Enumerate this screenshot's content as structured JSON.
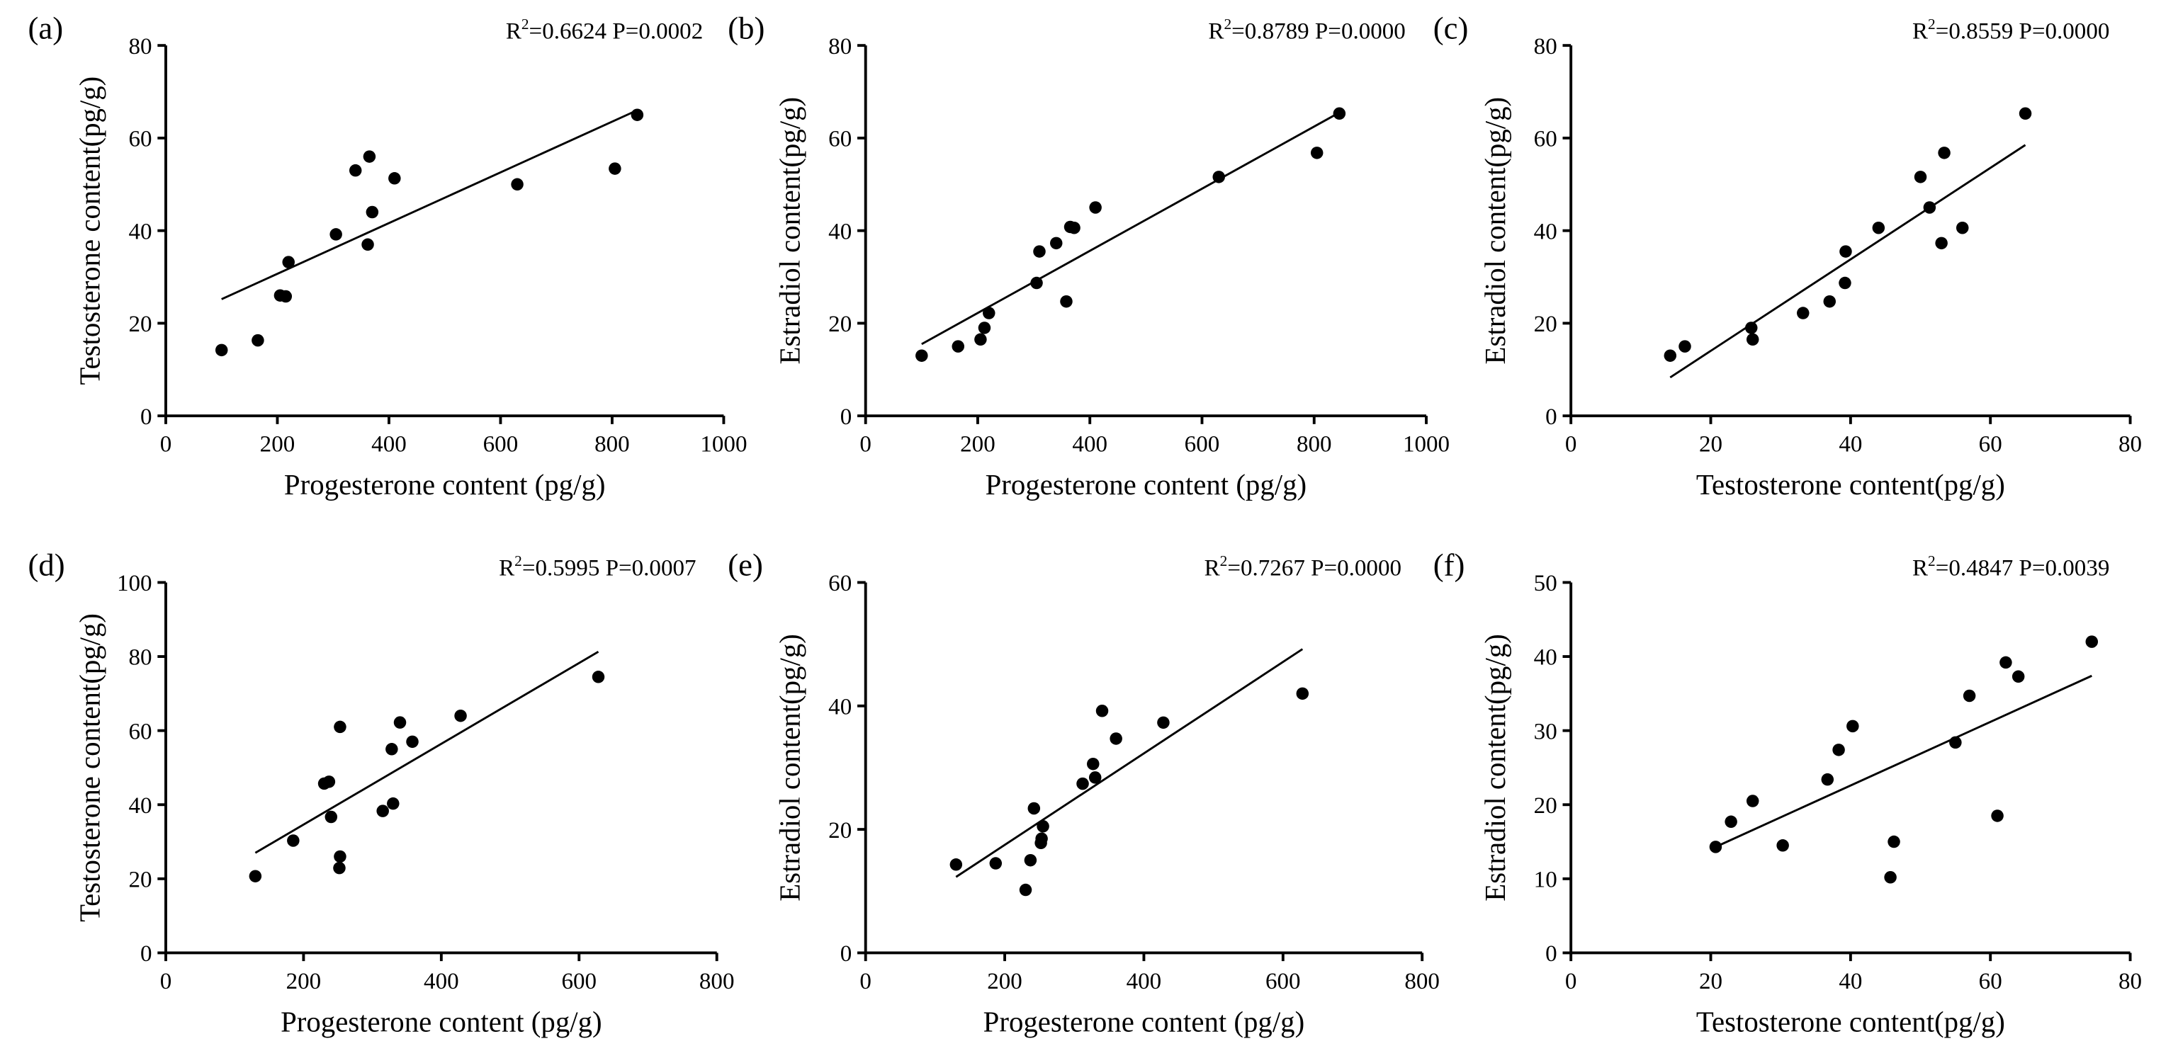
{
  "chart_data": [
    {
      "type": "scatter",
      "panel": "(a)",
      "annotation": {
        "r2": "0.6624",
        "p": "0.0002"
      },
      "xlabel": "Progesterone content (pg/g)",
      "ylabel": "Testosterone content(pg/g)",
      "xlim": [
        0,
        1000
      ],
      "ylim": [
        0,
        80
      ],
      "xticks": [
        0,
        200,
        400,
        600,
        800,
        1000
      ],
      "yticks": [
        0,
        20,
        40,
        60,
        80
      ],
      "points": [
        [
          100,
          14.2
        ],
        [
          165,
          16.3
        ],
        [
          205,
          26
        ],
        [
          215,
          25.8
        ],
        [
          220,
          33.2
        ],
        [
          305,
          39.2
        ],
        [
          340,
          53
        ],
        [
          365,
          56
        ],
        [
          362,
          37
        ],
        [
          370,
          44
        ],
        [
          410,
          51.3
        ],
        [
          630,
          50
        ],
        [
          805,
          53.4
        ],
        [
          845,
          65
        ]
      ],
      "fit": [
        [
          100,
          25.2
        ],
        [
          845,
          66
        ]
      ]
    },
    {
      "type": "scatter",
      "panel": "(b)",
      "annotation": {
        "r2": "0.8789",
        "p": "0.0000"
      },
      "xlabel": "Progesterone content (pg/g)",
      "ylabel": "Estradiol content(pg/g)",
      "xlim": [
        0,
        1000
      ],
      "ylim": [
        0,
        80
      ],
      "xticks": [
        0,
        200,
        400,
        600,
        800,
        1000
      ],
      "yticks": [
        0,
        20,
        40,
        60,
        80
      ],
      "points": [
        [
          100,
          13
        ],
        [
          165,
          15
        ],
        [
          205,
          16.5
        ],
        [
          212,
          19
        ],
        [
          220,
          22.2
        ],
        [
          305,
          28.7
        ],
        [
          310,
          35.5
        ],
        [
          340,
          37.3
        ],
        [
          358,
          24.7
        ],
        [
          365,
          40.8
        ],
        [
          372,
          40.6
        ],
        [
          410,
          45
        ],
        [
          630,
          51.6
        ],
        [
          805,
          56.8
        ],
        [
          845,
          65.3
        ]
      ],
      "fit": [
        [
          100,
          15.5
        ],
        [
          845,
          65.5
        ]
      ]
    },
    {
      "type": "scatter",
      "panel": "(c)",
      "annotation": {
        "r2": "0.8559",
        "p": "0.0000"
      },
      "xlabel": "Testosterone content(pg/g)",
      "ylabel": "Estradiol content(pg/g)",
      "xlim": [
        0,
        80
      ],
      "ylim": [
        0,
        80
      ],
      "xticks": [
        0,
        20,
        40,
        60,
        80
      ],
      "yticks": [
        0,
        20,
        40,
        60,
        80
      ],
      "points": [
        [
          14.2,
          13
        ],
        [
          16.3,
          15
        ],
        [
          26,
          16.5
        ],
        [
          25.8,
          19
        ],
        [
          33.2,
          22.2
        ],
        [
          37,
          24.7
        ],
        [
          39.2,
          28.7
        ],
        [
          39.3,
          35.5
        ],
        [
          44,
          40.6
        ],
        [
          50,
          51.6
        ],
        [
          51.3,
          45
        ],
        [
          53,
          37.3
        ],
        [
          53.4,
          56.8
        ],
        [
          56,
          40.6
        ],
        [
          65,
          65.3
        ]
      ],
      "fit": [
        [
          14.2,
          8.3
        ],
        [
          65,
          58.5
        ]
      ]
    },
    {
      "type": "scatter",
      "panel": "(d)",
      "annotation": {
        "r2": "0.5995",
        "p": "0.0007"
      },
      "xlabel": "Progesterone content (pg/g)",
      "ylabel": "Testosterone content(pg/g)",
      "xlim": [
        0,
        800
      ],
      "ylim": [
        0,
        100
      ],
      "xticks": [
        0,
        200,
        400,
        600,
        800
      ],
      "yticks": [
        0,
        20,
        40,
        60,
        80,
        100
      ],
      "points": [
        [
          130,
          20.7
        ],
        [
          185,
          30.3
        ],
        [
          230,
          45.7
        ],
        [
          237,
          46.2
        ],
        [
          240,
          36.7
        ],
        [
          252,
          22.9
        ],
        [
          253,
          26
        ],
        [
          253,
          61
        ],
        [
          315,
          38.3
        ],
        [
          328,
          55
        ],
        [
          330,
          40.3
        ],
        [
          340,
          62.2
        ],
        [
          358,
          57
        ],
        [
          428,
          64
        ],
        [
          628,
          74.5
        ]
      ],
      "fit": [
        [
          130,
          27
        ],
        [
          628,
          81.3
        ]
      ]
    },
    {
      "type": "scatter",
      "panel": "(e)",
      "annotation": {
        "r2": "0.7267",
        "p": "0.0000"
      },
      "xlabel": "Progesterone content (pg/g)",
      "ylabel": "Estradiol content(pg/g)",
      "xlim": [
        0,
        800
      ],
      "ylim": [
        0,
        60
      ],
      "xticks": [
        0,
        200,
        400,
        600,
        800
      ],
      "yticks": [
        0,
        20,
        40,
        60
      ],
      "points": [
        [
          130,
          14.3
        ],
        [
          187,
          14.5
        ],
        [
          230,
          10.2
        ],
        [
          237,
          15
        ],
        [
          242,
          23.4
        ],
        [
          252,
          17.8
        ],
        [
          253,
          18.5
        ],
        [
          255,
          20.5
        ],
        [
          312,
          27.4
        ],
        [
          327,
          30.6
        ],
        [
          330,
          28.4
        ],
        [
          340,
          39.2
        ],
        [
          360,
          34.7
        ],
        [
          428,
          37.3
        ],
        [
          628,
          42
        ]
      ],
      "fit": [
        [
          130,
          12.3
        ],
        [
          628,
          49.2
        ]
      ]
    },
    {
      "type": "scatter",
      "panel": "(f)",
      "annotation": {
        "r2": "0.4847",
        "p": "0.0039"
      },
      "xlabel": "Testosterone content(pg/g)",
      "ylabel": "Estradiol content(pg/g)",
      "xlim": [
        0,
        80
      ],
      "ylim": [
        0,
        50
      ],
      "xticks": [
        0,
        20,
        40,
        60,
        80
      ],
      "yticks": [
        0,
        10,
        20,
        30,
        40,
        50
      ],
      "points": [
        [
          20.7,
          14.3
        ],
        [
          22.9,
          17.7
        ],
        [
          26,
          20.5
        ],
        [
          30.3,
          14.5
        ],
        [
          36.7,
          23.4
        ],
        [
          38.3,
          27.4
        ],
        [
          40.3,
          30.6
        ],
        [
          45.7,
          10.2
        ],
        [
          46.2,
          15
        ],
        [
          55,
          28.4
        ],
        [
          57,
          34.7
        ],
        [
          61,
          18.5
        ],
        [
          62.2,
          39.2
        ],
        [
          64,
          37.3
        ],
        [
          74.5,
          42
        ]
      ],
      "fit": [
        [
          20.7,
          14.3
        ],
        [
          74.5,
          37.4
        ]
      ]
    }
  ]
}
